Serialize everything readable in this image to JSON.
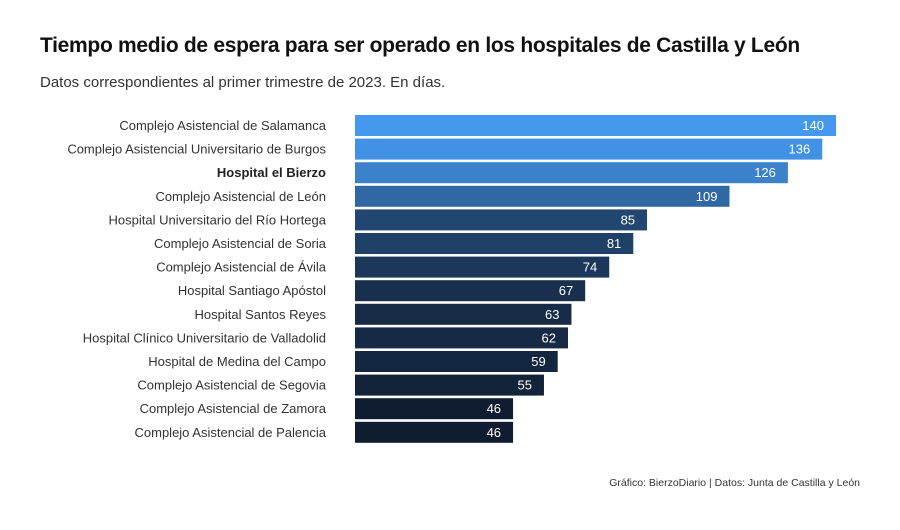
{
  "header": {
    "title": "Tiempo medio de espera para ser operado en los hospitales de Castilla y León",
    "subtitle": "Datos correspondientes al primer trimestre de 2023. En días."
  },
  "footer": {
    "caption": "Gráfico: BierzoDiario | Datos: Junta de Castilla y León"
  },
  "chart_data": {
    "type": "bar",
    "orientation": "horizontal",
    "title": "Tiempo medio de espera para ser operado en los hospitales de Castilla y León",
    "subtitle": "Datos correspondientes al primer trimestre de 2023. En días.",
    "categories": [
      "Complejo Asistencial de Salamanca",
      "Complejo Asistencial Universitario de Burgos",
      "Hospital el Bierzo",
      "Complejo Asistencial de León",
      "Hospital Universitario del Río Hortega",
      "Complejo Asistencial de Soria",
      "Complejo Asistencial de Ávila",
      "Hospital Santiago Apóstol",
      "Hospital Santos Reyes",
      "Hospital Clínico Universitario de Valladolid",
      "Hospital de Medina del Campo",
      "Complejo Asistencial de Segovia",
      "Complejo Asistencial de Zamora",
      "Complejo Asistencial de Palencia"
    ],
    "values": [
      140,
      136,
      126,
      109,
      85,
      81,
      74,
      67,
      63,
      62,
      59,
      55,
      46,
      46
    ],
    "highlighted_category": "Hospital el Bierzo",
    "xlim": [
      0,
      140
    ],
    "grid": false,
    "legend": "none",
    "colors": {
      "high": "#4499ee",
      "low": "#101c30"
    }
  }
}
